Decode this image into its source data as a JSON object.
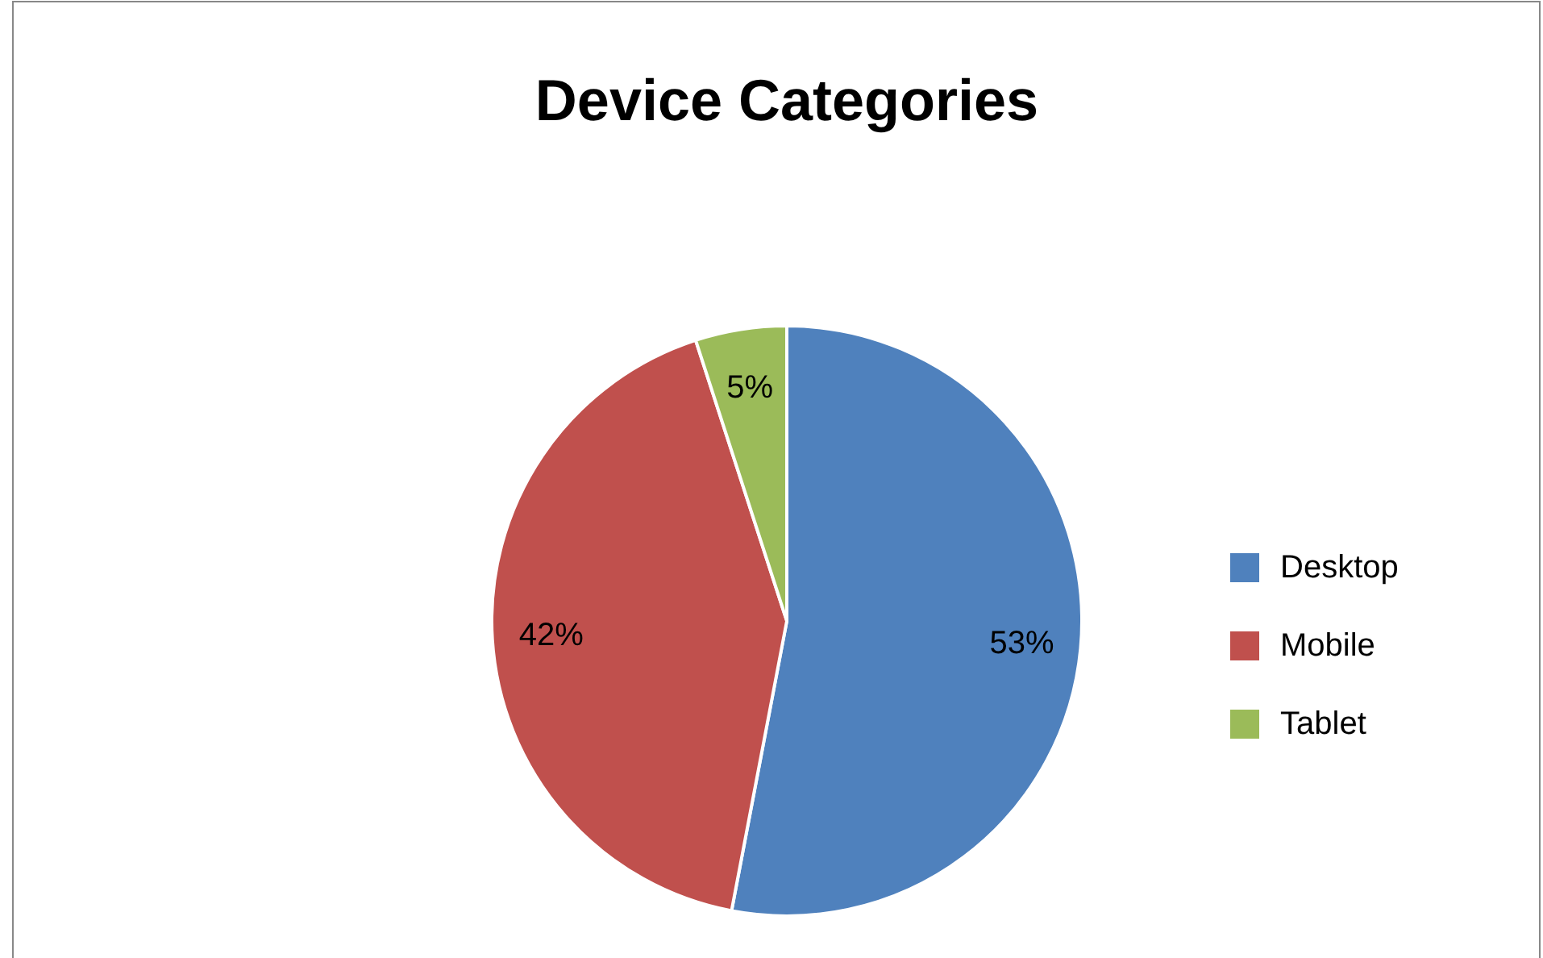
{
  "chart_data": {
    "type": "pie",
    "title": "Device Categories",
    "categories": [
      "Desktop",
      "Mobile",
      "Tablet"
    ],
    "values": [
      53,
      42,
      5
    ],
    "colors": [
      "#4f81bd",
      "#c0504d",
      "#9bbb59"
    ],
    "value_labels": [
      "53%",
      "42%",
      "5%"
    ],
    "legend": "right"
  }
}
